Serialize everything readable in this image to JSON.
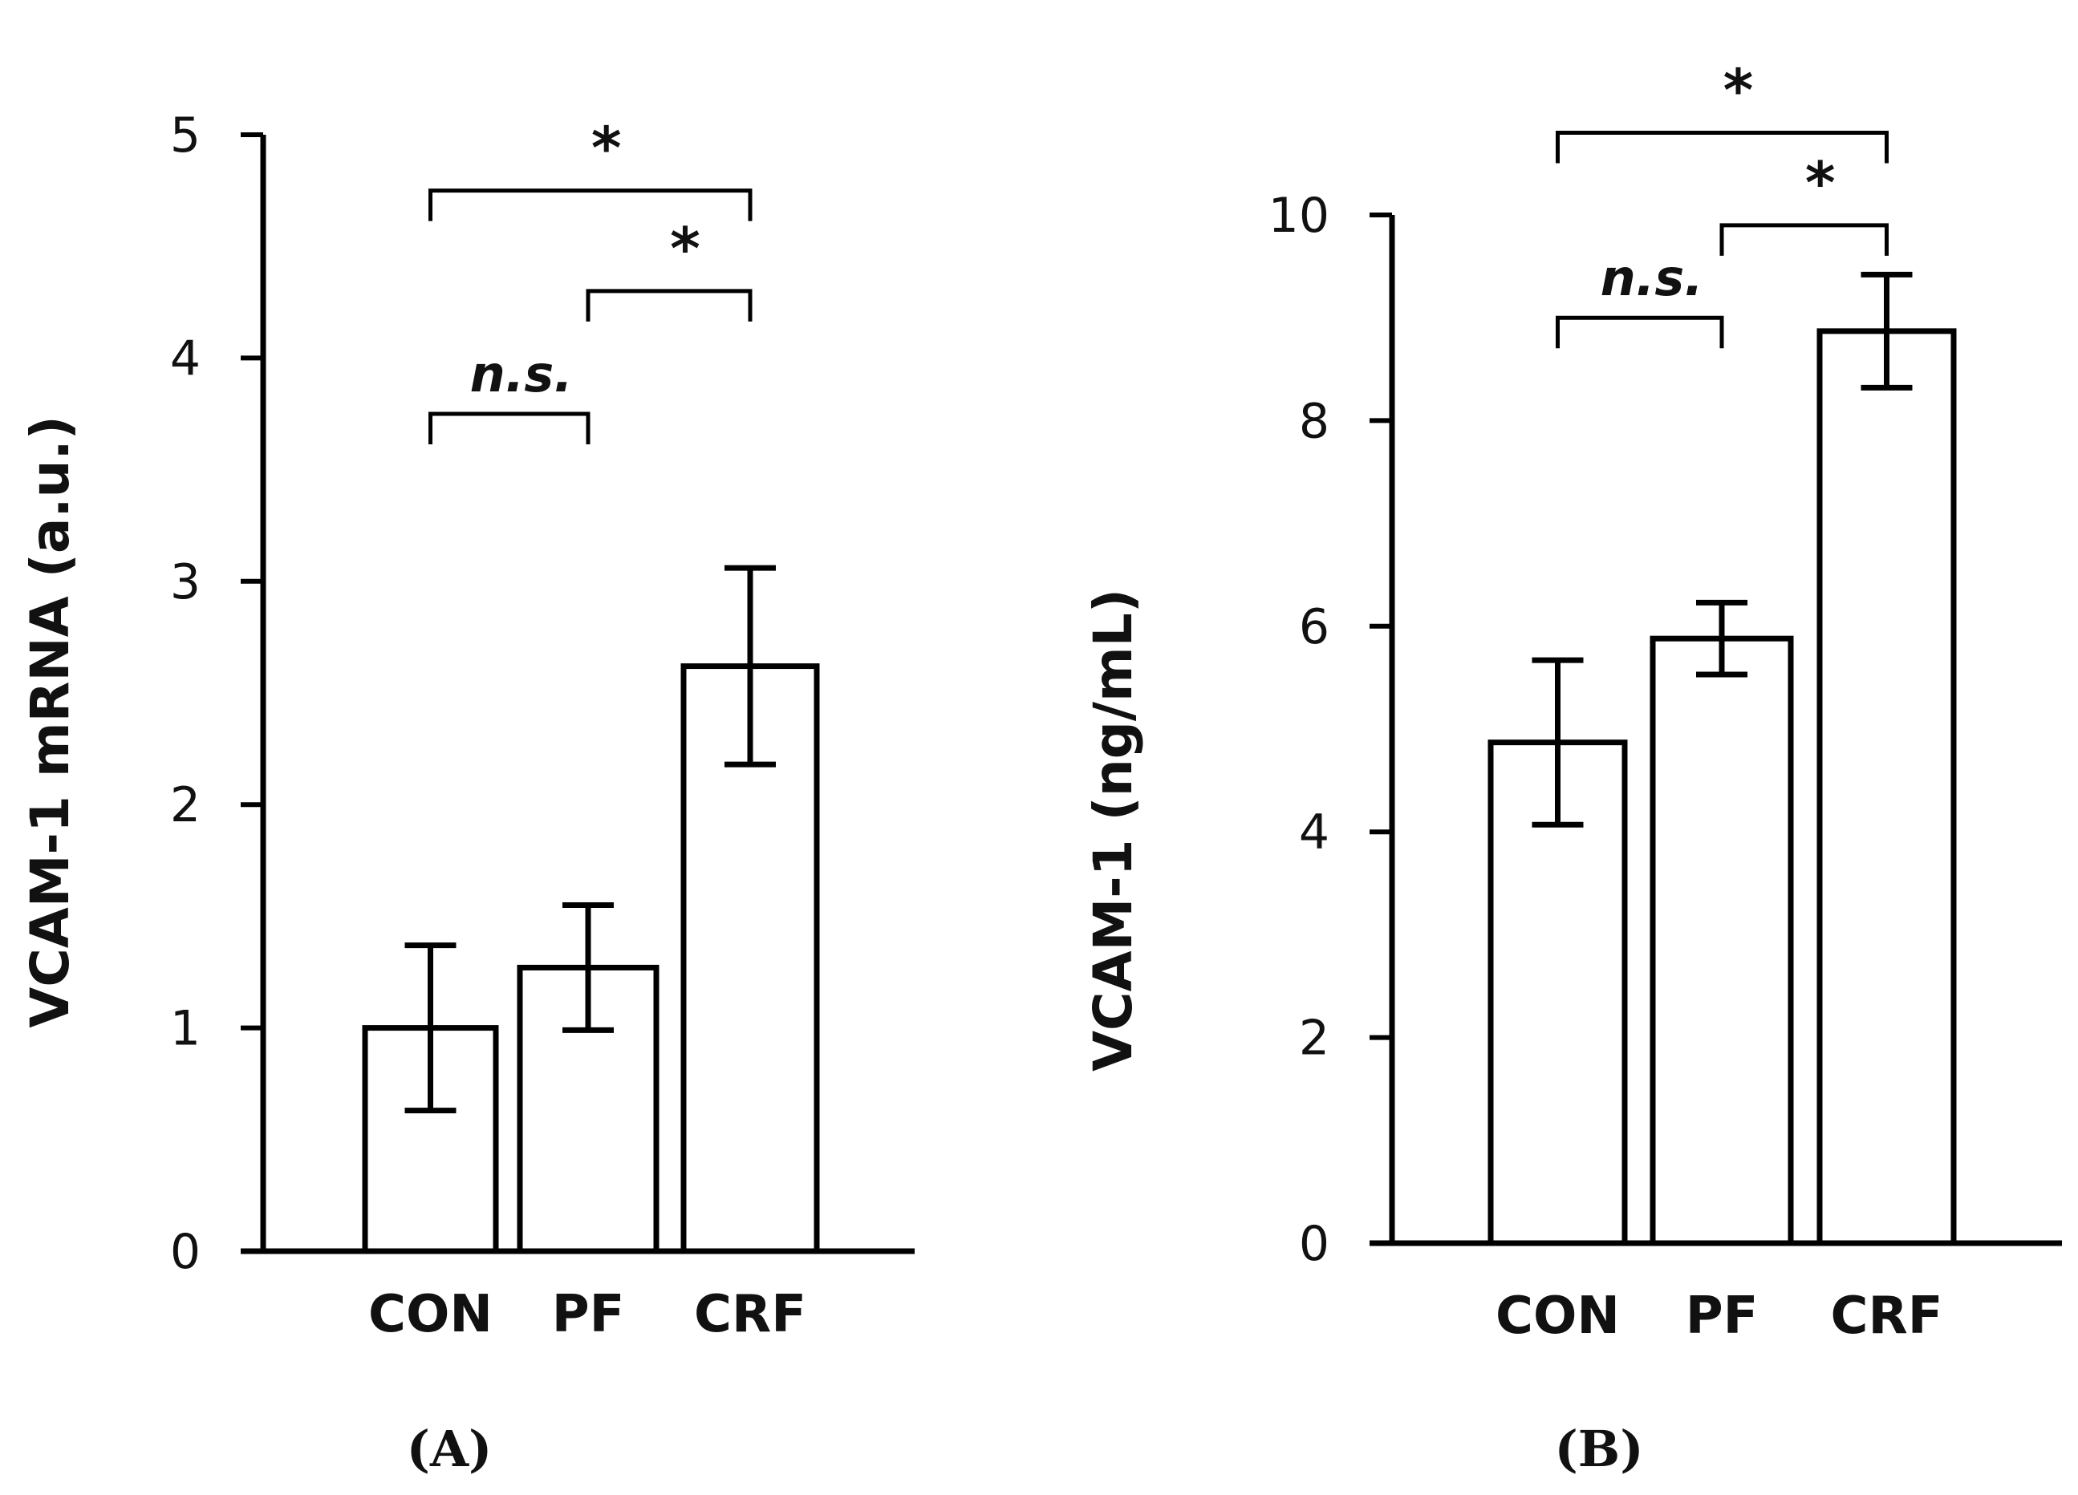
{
  "chart_data": [
    {
      "type": "bar",
      "panel_label": "(A)",
      "categories": [
        "CON",
        "PF",
        "CRF"
      ],
      "values": [
        1.0,
        1.27,
        2.62
      ],
      "errors": [
        0.37,
        0.28,
        0.44
      ],
      "ylabel": "VCAM-1 mRNA (a.u.)",
      "xlabel": "",
      "ylim": [
        0,
        5
      ],
      "yticks": [
        "0",
        "1",
        "2",
        "3",
        "4",
        "5"
      ],
      "bar_fill": "#ffffff",
      "bar_edge": "#000000",
      "significance": [
        {
          "from": 0,
          "to": 1,
          "label": "n.s.",
          "level": 3.75
        },
        {
          "from": 1,
          "to": 2,
          "label": "*",
          "level": 4.3
        },
        {
          "from": 0,
          "to": 2,
          "label": "*",
          "level": 4.75
        }
      ]
    },
    {
      "type": "bar",
      "panel_label": "(B)",
      "categories": [
        "CON",
        "PF",
        "CRF"
      ],
      "values": [
        4.87,
        5.88,
        8.87
      ],
      "errors": [
        0.8,
        0.35,
        0.55
      ],
      "ylabel": "VCAM-1 (ng/mL)",
      "xlabel": "",
      "ylim": [
        0,
        10
      ],
      "yticks": [
        "0",
        "2",
        "4",
        "6",
        "8",
        "10"
      ],
      "bar_fill": "#ffffff",
      "bar_edge": "#000000",
      "significance": [
        {
          "from": 0,
          "to": 1,
          "label": "n.s.",
          "level": 9.0
        },
        {
          "from": 1,
          "to": 2,
          "label": "*",
          "level": 9.9
        },
        {
          "from": 0,
          "to": 2,
          "label": "*",
          "level": 10.8
        }
      ]
    }
  ]
}
